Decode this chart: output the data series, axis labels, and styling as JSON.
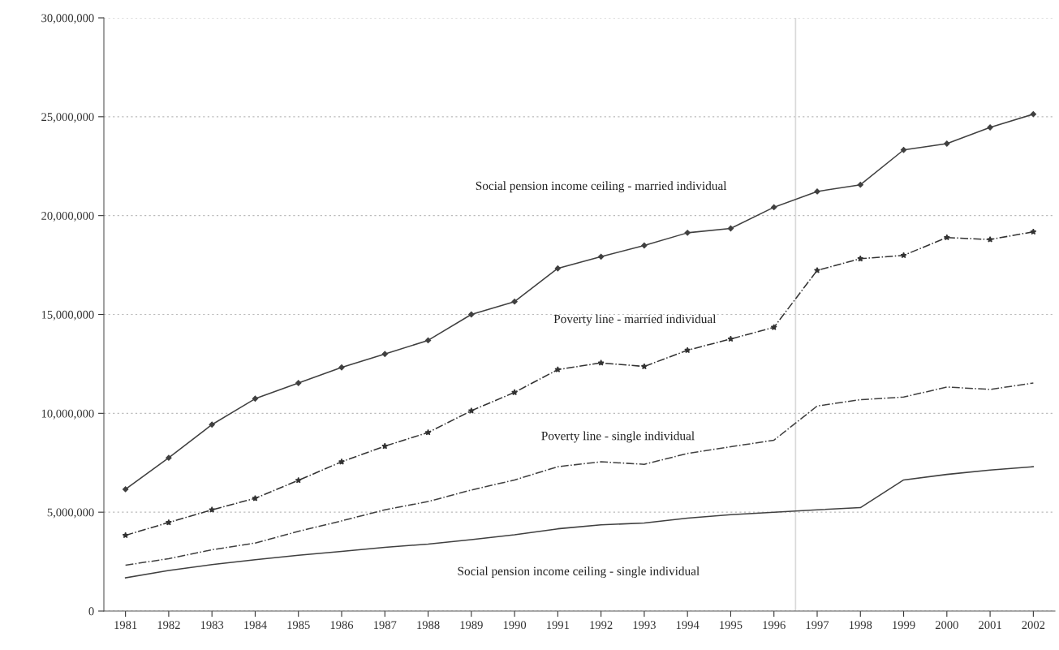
{
  "chart_data": {
    "type": "line",
    "x": [
      1981,
      1982,
      1983,
      1984,
      1985,
      1986,
      1987,
      1988,
      1989,
      1990,
      1991,
      1992,
      1993,
      1994,
      1995,
      1996,
      1997,
      1998,
      1999,
      2000,
      2001,
      2002
    ],
    "xlim": [
      1980.5,
      2002.5
    ],
    "xticks": [
      1981,
      1982,
      1983,
      1984,
      1985,
      1986,
      1987,
      1988,
      1989,
      1990,
      1991,
      1992,
      1993,
      1994,
      1995,
      1996,
      1997,
      1998,
      1999,
      2000,
      2001,
      2002
    ],
    "ylim": [
      0,
      30000000
    ],
    "yticks": [
      {
        "value": 0,
        "label": "0"
      },
      {
        "value": 5000000,
        "label": "5,000,000"
      },
      {
        "value": 10000000,
        "label": "10,000,000"
      },
      {
        "value": 15000000,
        "label": "15,000,000"
      },
      {
        "value": 20000000,
        "label": "20,000,000"
      },
      {
        "value": 25000000,
        "label": "25,000,000"
      },
      {
        "value": 30000000,
        "label": "30,000,000"
      }
    ],
    "grid": "y",
    "legend": false,
    "ref_lines": [
      {
        "axis": "x",
        "value": 1996.5,
        "color": "#d9d9d9"
      }
    ],
    "series": [
      {
        "name": "Social pension income ceiling - married individual",
        "color": "#404040",
        "line_style": "solid",
        "marker": "diamond",
        "values": [
          6160000,
          7750000,
          9430000,
          10740000,
          11530000,
          12320000,
          13000000,
          13690000,
          15000000,
          15650000,
          17330000,
          17920000,
          18490000,
          19130000,
          19350000,
          20420000,
          21220000,
          21560000,
          23320000,
          23640000,
          24460000,
          25130000
        ]
      },
      {
        "name": "Poverty line - married individual",
        "color": "#333333",
        "line_style": "dashdot",
        "marker": "star",
        "values": [
          3830000,
          4480000,
          5120000,
          5700000,
          6610000,
          7550000,
          8340000,
          9030000,
          10130000,
          11060000,
          12210000,
          12550000,
          12370000,
          13190000,
          13760000,
          14350000,
          17230000,
          17820000,
          17990000,
          18890000,
          18790000,
          19180000
        ]
      },
      {
        "name": "Poverty line - single individual",
        "color": "#404040",
        "line_style": "dashdot",
        "marker": "none",
        "values": [
          2320000,
          2650000,
          3100000,
          3440000,
          4030000,
          4560000,
          5120000,
          5540000,
          6120000,
          6630000,
          7300000,
          7550000,
          7420000,
          7970000,
          8310000,
          8640000,
          10370000,
          10690000,
          10820000,
          11330000,
          11210000,
          11530000
        ]
      },
      {
        "name": "Social pension income ceiling - single individual",
        "color": "#404040",
        "line_style": "solid",
        "marker": "none",
        "values": [
          1680000,
          2050000,
          2350000,
          2600000,
          2820000,
          3020000,
          3220000,
          3390000,
          3610000,
          3860000,
          4160000,
          4360000,
          4450000,
          4700000,
          4870000,
          5000000,
          5120000,
          5230000,
          6630000,
          6910000,
          7130000,
          7300000
        ]
      }
    ]
  }
}
